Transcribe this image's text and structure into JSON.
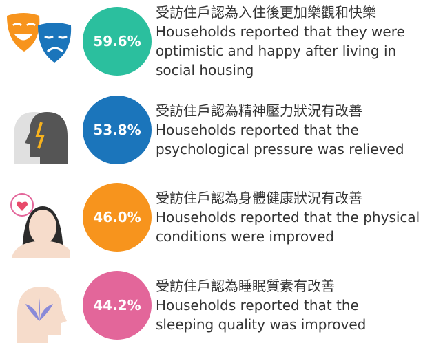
{
  "items": [
    {
      "percent": "59.6%",
      "color": "#2bbf9e",
      "chinese": "受訪住戶認為入住後更加樂觀和快樂",
      "english": [
        "Households reported that they were",
        "optimistic and happy after living in",
        "social housing"
      ]
    },
    {
      "percent": "53.8%",
      "color": "#1b75bb",
      "chinese": "受訪住戶認為精神壓力狀況有改善",
      "english": [
        "Households reported that the",
        "psychological pressure was relieved"
      ]
    },
    {
      "percent": "46.0%",
      "color": "#f7941d",
      "chinese": "受訪住戶認為身體健康狀況有改善",
      "english": [
        "Households reported that the physical",
        "conditions were improved"
      ]
    },
    {
      "percent": "44.2%",
      "color": "#e3669a",
      "chinese": "受訪住戶認為睡眠質素有改善",
      "english": [
        "Households reported that the",
        "sleeping quality was improved"
      ]
    }
  ]
}
